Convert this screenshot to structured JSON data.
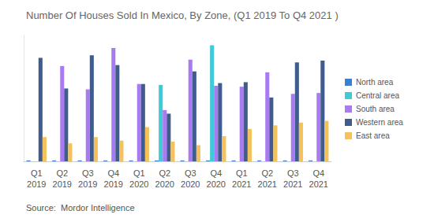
{
  "chart_data": {
    "type": "bar",
    "title": "Number Of Houses Sold In Mexico, By Zone, (Q1 2019 To Q4 2021 )",
    "source": "Source:  Mordor Intelligence",
    "categories": [
      "Q1\n2019",
      "Q2\n2019",
      "Q3\n2019",
      "Q4\n2019",
      "Q1\n2020",
      "Q2\n2020",
      "Q3\n2020",
      "Q4\n2020",
      "Q1\n2021",
      "Q2\n2021",
      "Q3\n2021",
      "Q4\n2021"
    ],
    "series": [
      {
        "name": "North area",
        "color": "#3a7fd5",
        "values": [
          1,
          1,
          1,
          1,
          1,
          1,
          1,
          1,
          1,
          1,
          1,
          1
        ]
      },
      {
        "name": "Central area",
        "color": "#40c9d8",
        "values": [
          0,
          0,
          0,
          0,
          0,
          85,
          0,
          129,
          0,
          0,
          0,
          0
        ]
      },
      {
        "name": "South area",
        "color": "#a87cf0",
        "values": [
          0,
          106,
          80,
          126,
          86,
          57,
          113,
          84,
          83,
          99,
          75,
          76
        ]
      },
      {
        "name": "Western area",
        "color": "#3f5c8c",
        "values": [
          115,
          81,
          118,
          107,
          86,
          53,
          100,
          87,
          88,
          71,
          110,
          112
        ]
      },
      {
        "name": "East area",
        "color": "#f4c15a",
        "values": [
          27,
          20,
          27,
          23,
          38,
          22,
          18,
          28,
          36,
          40,
          43,
          45
        ]
      }
    ],
    "ylim": [
      0,
      140
    ],
    "grid": false,
    "legend": "right",
    "tick_labels": "x"
  }
}
